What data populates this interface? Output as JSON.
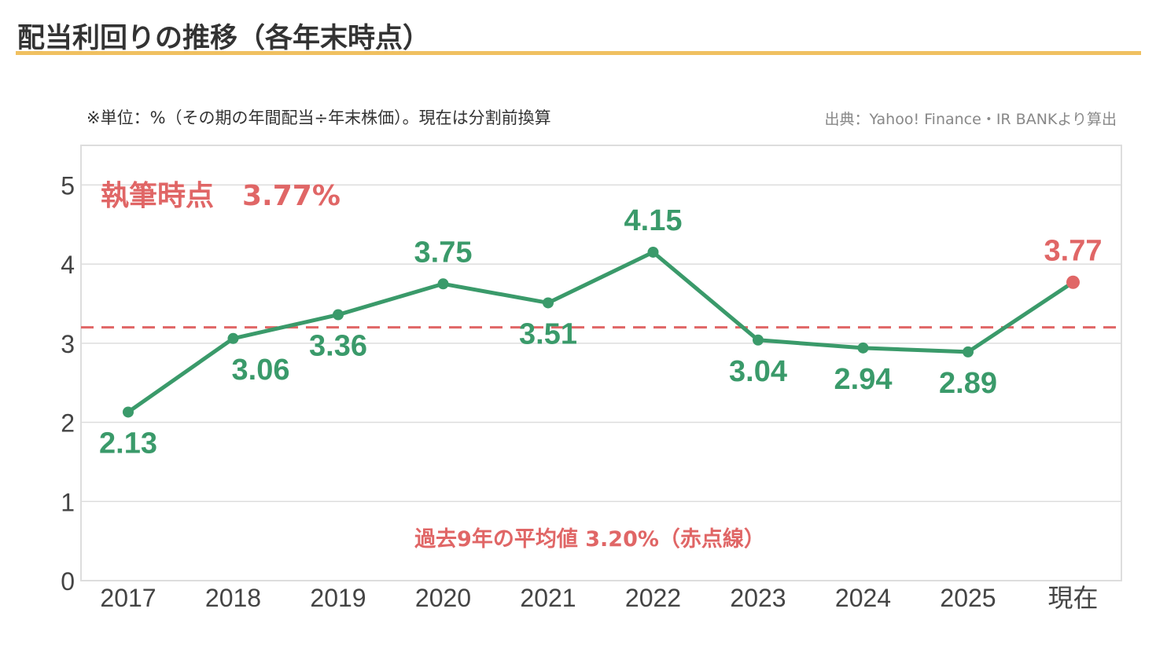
{
  "title": "配当利回りの推移（各年末時点）",
  "note": "※単位：%（その期の年間配当÷年末株価）。現在は分割前換算",
  "source": "出典：Yahoo! Finance・IR BANKより算出",
  "colors": {
    "accent_rule": "#f0c060",
    "series": "#3a9a6a",
    "highlight": "#e06666",
    "grid": "#dddddd",
    "axis_text": "#444444"
  },
  "chart_data": {
    "type": "line",
    "categories": [
      "2017",
      "2018",
      "2019",
      "2020",
      "2021",
      "2022",
      "2023",
      "2024",
      "2025",
      "現在"
    ],
    "series": [
      {
        "values": [
          2.13,
          3.06,
          3.36,
          3.75,
          3.51,
          4.15,
          3.04,
          2.94,
          2.89,
          3.77
        ]
      }
    ],
    "data_labels": [
      "2.13",
      "3.06",
      "3.36",
      "3.75",
      "3.51",
      "4.15",
      "3.04",
      "2.94",
      "2.89",
      "3.77"
    ],
    "yticks": [
      "0",
      "1",
      "2",
      "3",
      "4",
      "5"
    ],
    "ylim": [
      0,
      5.5
    ],
    "average_line": 3.2,
    "annotation_current": "執筆時点　3.77%",
    "annotation_average": "過去9年の平均値 3.20%（赤点線）",
    "grid": true
  }
}
